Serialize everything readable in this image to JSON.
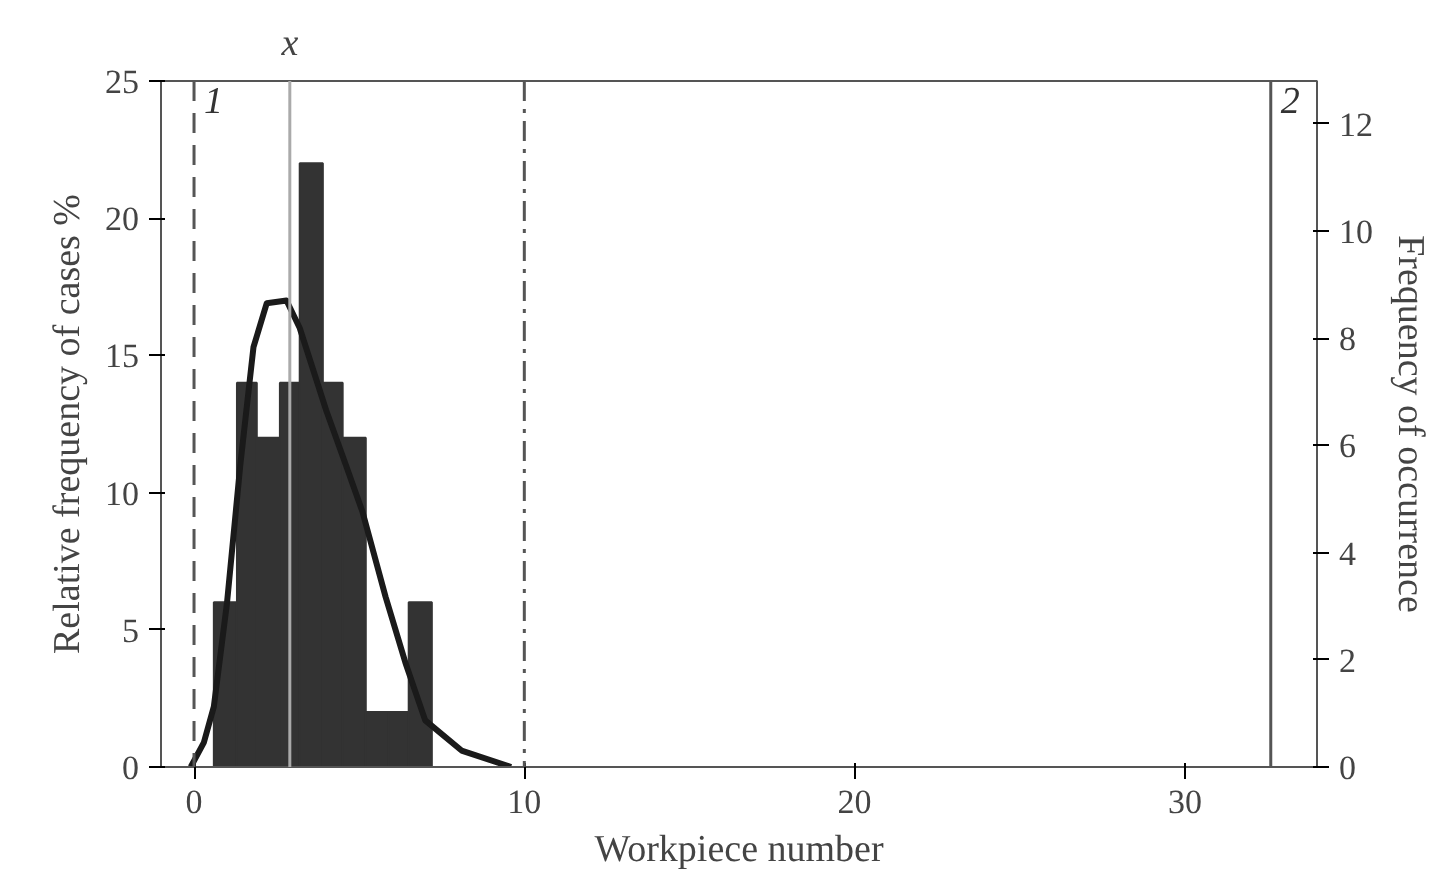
{
  "chart_data": {
    "type": "histogram",
    "xlabel": "Workpiece number",
    "ylabel": "Relative frequency of cases %",
    "y2label": "Frequency of occurrence",
    "bins": [
      0.6,
      1.3,
      1.9,
      2.6,
      3.2,
      3.9,
      4.5,
      5.2,
      5.9,
      6.5,
      7.2
    ],
    "values": [
      6,
      14,
      12,
      14,
      22,
      14,
      12,
      2,
      2,
      6
    ],
    "color": "#333333",
    "series": [
      {
        "type": "line",
        "color": "#1a1a1a",
        "x": [
          -0.1,
          0.3,
          0.6,
          1.0,
          1.4,
          1.8,
          2.2,
          2.8,
          3.2,
          4.0,
          4.6,
          5.1,
          5.8,
          6.4,
          7.0,
          8.1,
          9.6
        ],
        "values": [
          0,
          0.9,
          2.2,
          6,
          11,
          15.3,
          16.9,
          17.0,
          16,
          13,
          11,
          9.3,
          6.2,
          3.8,
          1.7,
          0.6,
          0
        ]
      }
    ],
    "ref_lines": [
      {
        "axis": "x",
        "value": 0,
        "line_style": "dashed",
        "color": "#555555"
      },
      {
        "axis": "x",
        "value": 2.9,
        "label": "x",
        "line_style": "solid",
        "color": "#aaaaaa"
      },
      {
        "axis": "x",
        "value": 10,
        "line_style": "dashdot",
        "color": "#555555"
      },
      {
        "axis": "x",
        "value": 32.6,
        "line_style": "solid",
        "color": "#555555"
      }
    ],
    "annotations": [
      {
        "text": "1",
        "x": 0,
        "y": 25
      },
      {
        "text": "2",
        "x": 32.6,
        "y": 25
      }
    ],
    "xlim": [
      -1,
      34
    ],
    "xticks": [
      0,
      10,
      20,
      30
    ],
    "ylim": [
      0,
      25
    ],
    "yticks": [
      0,
      5,
      10,
      15,
      20,
      25
    ],
    "y2lim": [
      0,
      12.8
    ],
    "y2ticks": [
      0,
      2,
      4,
      6,
      8,
      10,
      12
    ],
    "grid": false
  }
}
